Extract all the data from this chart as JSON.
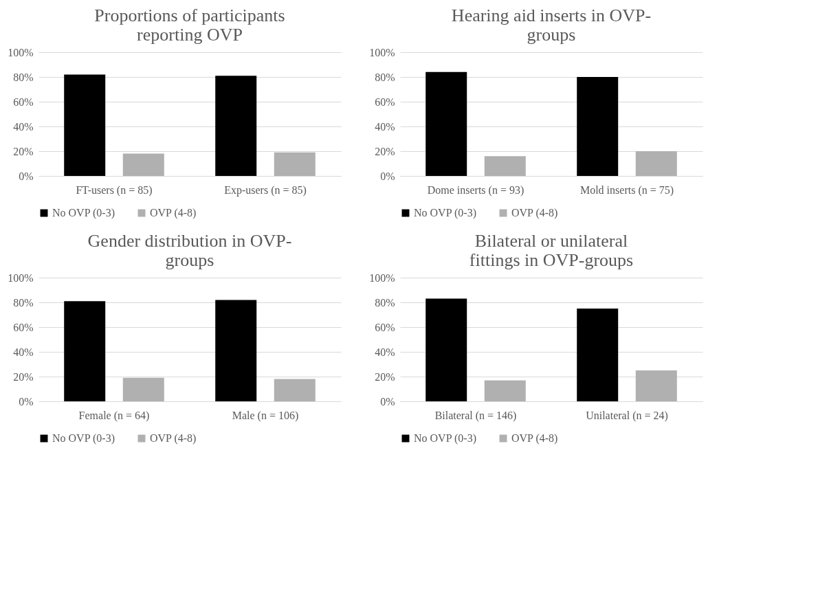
{
  "chart_data": [
    {
      "type": "bar",
      "title": "Proportions of participants reporting OVP",
      "categories": [
        "FT-users (n = 85)",
        "Exp-users (n = 85)"
      ],
      "series": [
        {
          "name": "No OVP (0-3)",
          "color": "#000000",
          "values": [
            82,
            81
          ]
        },
        {
          "name": "OVP (4-8)",
          "color": "#b0b0b0",
          "values": [
            18,
            19
          ]
        }
      ],
      "ylim": [
        0,
        100
      ],
      "yticks": [
        {
          "value": 0,
          "label": "0%"
        },
        {
          "value": 20,
          "label": "20%"
        },
        {
          "value": 40,
          "label": "40%"
        },
        {
          "value": 60,
          "label": "60%"
        },
        {
          "value": 80,
          "label": "80%"
        },
        {
          "value": 100,
          "label": "100%"
        }
      ],
      "grid": "y",
      "legend": "bottom"
    },
    {
      "type": "bar",
      "title": "Hearing aid inserts in OVP-groups",
      "categories": [
        "Dome inserts (n = 93)",
        "Mold inserts (n = 75)"
      ],
      "series": [
        {
          "name": "No OVP (0-3)",
          "color": "#000000",
          "values": [
            84,
            80
          ]
        },
        {
          "name": "OVP (4-8)",
          "color": "#b0b0b0",
          "values": [
            16,
            20
          ]
        }
      ],
      "ylim": [
        0,
        100
      ],
      "yticks": [
        {
          "value": 0,
          "label": "0%"
        },
        {
          "value": 20,
          "label": "20%"
        },
        {
          "value": 40,
          "label": "40%"
        },
        {
          "value": 60,
          "label": "60%"
        },
        {
          "value": 80,
          "label": "80%"
        },
        {
          "value": 100,
          "label": "100%"
        }
      ],
      "grid": "y",
      "legend": "bottom"
    },
    {
      "type": "bar",
      "title": "Gender distribution in OVP-groups",
      "categories": [
        "Female (n = 64)",
        "Male (n = 106)"
      ],
      "series": [
        {
          "name": "No OVP (0-3)",
          "color": "#000000",
          "values": [
            81,
            82
          ]
        },
        {
          "name": "OVP (4-8)",
          "color": "#b0b0b0",
          "values": [
            19,
            18
          ]
        }
      ],
      "ylim": [
        0,
        100
      ],
      "yticks": [
        {
          "value": 0,
          "label": "0%"
        },
        {
          "value": 20,
          "label": "20%"
        },
        {
          "value": 40,
          "label": "40%"
        },
        {
          "value": 60,
          "label": "60%"
        },
        {
          "value": 80,
          "label": "80%"
        },
        {
          "value": 100,
          "label": "100%"
        }
      ],
      "grid": "y",
      "legend": "bottom"
    },
    {
      "type": "bar",
      "title": "Bilateral or unilateral fittings in OVP-groups",
      "categories": [
        "Bilateral (n = 146)",
        "Unilateral (n = 24)"
      ],
      "series": [
        {
          "name": "No OVP (0-3)",
          "color": "#000000",
          "values": [
            83,
            75
          ]
        },
        {
          "name": "OVP (4-8)",
          "color": "#b0b0b0",
          "values": [
            17,
            25
          ]
        }
      ],
      "ylim": [
        0,
        100
      ],
      "yticks": [
        {
          "value": 0,
          "label": "0%"
        },
        {
          "value": 20,
          "label": "20%"
        },
        {
          "value": 40,
          "label": "40%"
        },
        {
          "value": 60,
          "label": "60%"
        },
        {
          "value": 80,
          "label": "80%"
        },
        {
          "value": 100,
          "label": "100%"
        }
      ],
      "grid": "y",
      "legend": "bottom"
    }
  ]
}
